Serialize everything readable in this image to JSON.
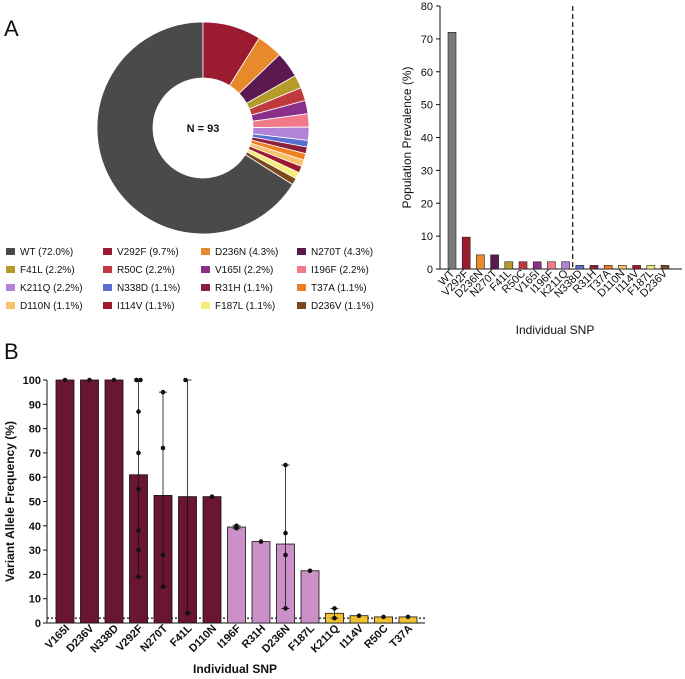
{
  "panels": {
    "a": "A",
    "b": "B"
  },
  "chart_data": [
    {
      "type": "pie",
      "subtype": "donut",
      "center_label": "N = 93",
      "legend_position": "bottom",
      "slices": [
        {
          "label": "WT",
          "value": 72.0,
          "legend": "WT (72.0%)",
          "color": "#4a4a4a"
        },
        {
          "label": "V292F",
          "value": 9.7,
          "legend": "V292F (9.7%)",
          "color": "#9b1b30"
        },
        {
          "label": "D236N",
          "value": 4.3,
          "legend": "D236N (4.3%)",
          "color": "#e8892b"
        },
        {
          "label": "N270T",
          "value": 4.3,
          "legend": "N270T (4.3%)",
          "color": "#5b1a4f"
        },
        {
          "label": "F41L",
          "value": 2.2,
          "legend": "F41L (2.2%)",
          "color": "#b59b2c"
        },
        {
          "label": "R50C",
          "value": 2.2,
          "legend": "R50C (2.2%)",
          "color": "#c0393f"
        },
        {
          "label": "V165I",
          "value": 2.2,
          "legend": "V165I (2.2%)",
          "color": "#8a2f8a"
        },
        {
          "label": "I196F",
          "value": 2.2,
          "legend": "I196F (2.2%)",
          "color": "#f07a8a"
        },
        {
          "label": "K211Q",
          "value": 2.2,
          "legend": "K211Q (2.2%)",
          "color": "#b383d6"
        },
        {
          "label": "N338D",
          "value": 1.1,
          "legend": "N338D (1.1%)",
          "color": "#5a6fd0"
        },
        {
          "label": "R31H",
          "value": 1.1,
          "legend": "R31H (1.1%)",
          "color": "#8c1f3a"
        },
        {
          "label": "T37A",
          "value": 1.1,
          "legend": "T37A (1.1%)",
          "color": "#ef7f22"
        },
        {
          "label": "D110N",
          "value": 1.1,
          "legend": "D110N (1.1%)",
          "color": "#f7c06b"
        },
        {
          "label": "I114V",
          "value": 1.1,
          "legend": "I114V (1.1%)",
          "color": "#9e1a2e"
        },
        {
          "label": "F187L",
          "value": 1.1,
          "legend": "F187L (1.1%)",
          "color": "#f6ec7a"
        },
        {
          "label": "D236V",
          "value": 1.1,
          "legend": "D236V (1.1%)",
          "color": "#7a4a1e"
        }
      ]
    },
    {
      "type": "bar",
      "ylabel": "Population Prevalence (%)",
      "xlabel": "Individual SNP",
      "ylim": [
        0,
        80
      ],
      "yticks": [
        0,
        10,
        20,
        30,
        40,
        50,
        60,
        70,
        80
      ],
      "divider_after": "K211Q",
      "categories": [
        "WT",
        "V292F",
        "D236N",
        "N270T",
        "F41L",
        "R50C",
        "V165I",
        "I196F",
        "K211Q",
        "N338D",
        "R31H",
        "T37A",
        "D110N",
        "I114V",
        "F187L",
        "D236V"
      ],
      "values": [
        72.0,
        9.7,
        4.3,
        4.3,
        2.2,
        2.2,
        2.2,
        2.2,
        2.2,
        1.1,
        1.1,
        1.1,
        1.1,
        1.1,
        1.1,
        1.1
      ],
      "colors": [
        "#7a7a7a",
        "#9b1b30",
        "#e8892b",
        "#5b1a4f",
        "#b59b2c",
        "#c0393f",
        "#8a2f8a",
        "#f07a8a",
        "#b383d6",
        "#5a6fd0",
        "#8c1f3a",
        "#ef7f22",
        "#f7c06b",
        "#9e1a2e",
        "#f6ec7a",
        "#7a4a1e"
      ]
    },
    {
      "type": "bar",
      "ylabel": "Variant Allele Frequency (%)",
      "xlabel": "Individual SNP",
      "ylim": [
        0,
        100
      ],
      "yticks": [
        0,
        10,
        20,
        30,
        40,
        50,
        60,
        70,
        80,
        90,
        100
      ],
      "threshold_line": 2,
      "categories": [
        "V165I",
        "D236V",
        "N338D",
        "V292F",
        "N270T",
        "F41L",
        "D110N",
        "I196F",
        "R31H",
        "D236N",
        "F187L",
        "K211Q",
        "I114V",
        "R50C",
        "T37A"
      ],
      "values": [
        100,
        100,
        100,
        61,
        52.5,
        52,
        52,
        39.5,
        33.5,
        32.5,
        21.5,
        4,
        3,
        2.5,
        2.5
      ],
      "error_low": [
        100,
        100,
        100,
        19,
        15,
        4,
        52,
        39,
        33.5,
        6,
        21.5,
        2,
        3,
        2.5,
        2.5
      ],
      "error_high": [
        100,
        100,
        100,
        100,
        95,
        100,
        52,
        40,
        33.5,
        65,
        21.5,
        6,
        3,
        2.5,
        2.5
      ],
      "points": [
        [
          100
        ],
        [
          100
        ],
        [
          100
        ],
        [
          100,
          100,
          87,
          70,
          55,
          38,
          30,
          19,
          100
        ],
        [
          95,
          72,
          28,
          15
        ],
        [
          100,
          4
        ],
        [
          52
        ],
        [
          39,
          40
        ],
        [
          33.5
        ],
        [
          65,
          37,
          28,
          6
        ],
        [
          21.5
        ],
        [
          2,
          6
        ],
        [
          3
        ],
        [
          2.5
        ],
        [
          2.5
        ]
      ],
      "colors": [
        "#6b1535",
        "#6b1535",
        "#6b1535",
        "#6b1535",
        "#6b1535",
        "#6b1535",
        "#6b1535",
        "#cc90c8",
        "#cc90c8",
        "#cc90c8",
        "#cc90c8",
        "#f2c131",
        "#f2c131",
        "#f2c131",
        "#f2c131"
      ]
    }
  ]
}
